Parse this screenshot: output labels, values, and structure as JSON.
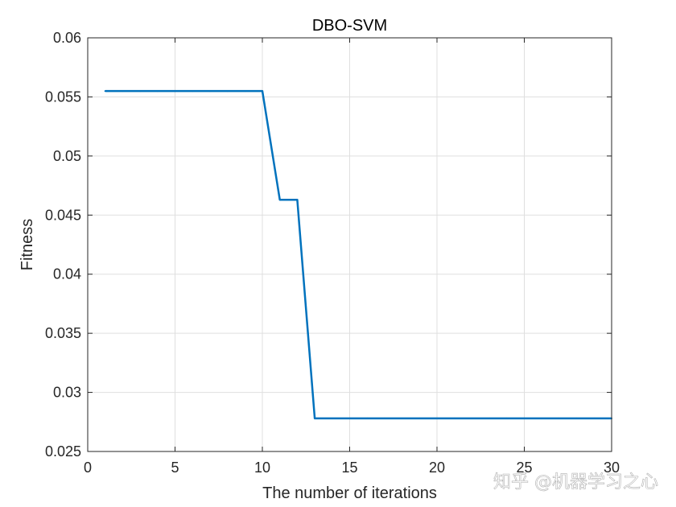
{
  "chart_data": {
    "type": "line",
    "title": "DBO-SVM",
    "xlabel": "The number of iterations",
    "ylabel": "Fitness",
    "xlim": [
      0,
      30
    ],
    "ylim": [
      0.025,
      0.06
    ],
    "xticks": [
      0,
      5,
      10,
      15,
      20,
      25,
      30
    ],
    "yticks": [
      0.025,
      0.03,
      0.035,
      0.04,
      0.045,
      0.05,
      0.055,
      0.06
    ],
    "xtick_labels": [
      "0",
      "5",
      "10",
      "15",
      "20",
      "25",
      "30"
    ],
    "ytick_labels": [
      "0.025",
      "0.03",
      "0.035",
      "0.04",
      "0.045",
      "0.05",
      "0.055",
      "0.06"
    ],
    "grid": true,
    "series": [
      {
        "color": "#0072bd",
        "x": [
          1,
          2,
          3,
          4,
          5,
          6,
          7,
          8,
          9,
          10,
          11,
          12,
          13,
          14,
          15,
          16,
          17,
          18,
          19,
          20,
          21,
          22,
          23,
          24,
          25,
          26,
          27,
          28,
          29,
          30
        ],
        "y": [
          0.0555,
          0.0555,
          0.0555,
          0.0555,
          0.0555,
          0.0555,
          0.0555,
          0.0555,
          0.0555,
          0.0555,
          0.0463,
          0.0463,
          0.0278,
          0.0278,
          0.0278,
          0.0278,
          0.0278,
          0.0278,
          0.0278,
          0.0278,
          0.0278,
          0.0278,
          0.0278,
          0.0278,
          0.0278,
          0.0278,
          0.0278,
          0.0278,
          0.0278,
          0.0278
        ]
      }
    ]
  },
  "watermark": "知乎 @机器学习之心"
}
